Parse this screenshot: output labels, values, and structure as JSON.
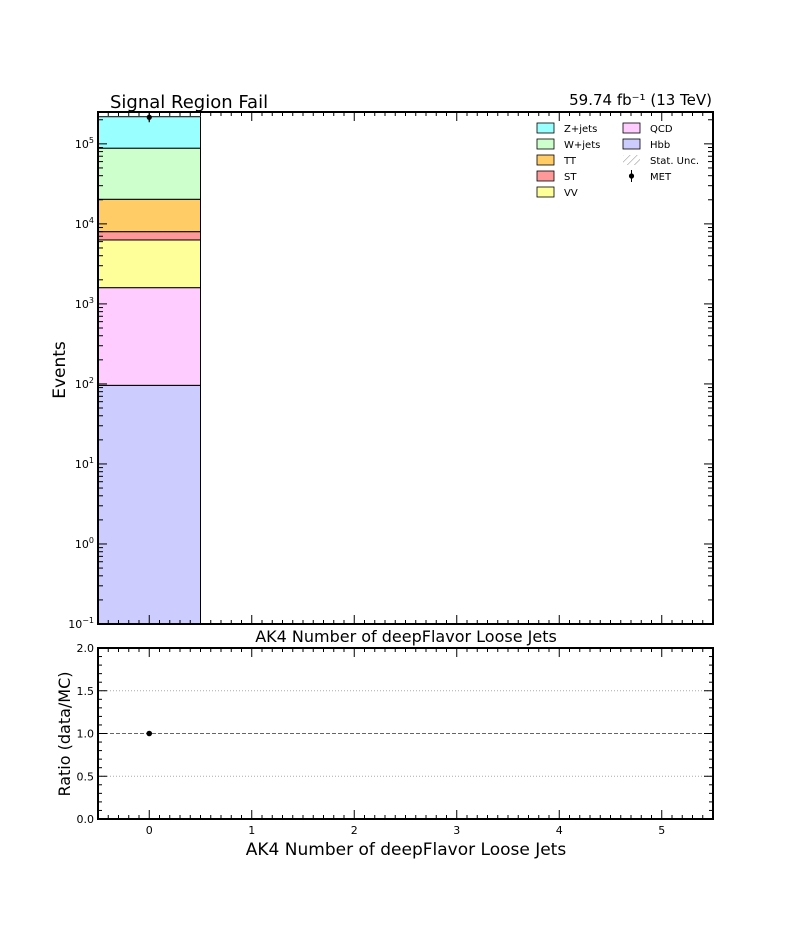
{
  "chart_data": [
    {
      "type": "bar",
      "stacked": true,
      "title": "Signal Region Fail",
      "lumi_label": "59.74 fb⁻¹ (13 TeV)",
      "xlabel": "AK4 Number of deepFlavor Loose Jets",
      "ylabel": "Events",
      "yscale": "log",
      "xlim": [
        -0.5,
        5.5
      ],
      "ylim": [
        0.1,
        250000
      ],
      "x_bin_edges": [
        -0.5,
        0.5
      ],
      "y_ticks": [
        {
          "value": 0.1,
          "base": "10",
          "exp": "−1"
        },
        {
          "value": 1,
          "base": "10",
          "exp": "0"
        },
        {
          "value": 10,
          "base": "10",
          "exp": "1"
        },
        {
          "value": 100,
          "base": "10",
          "exp": "2"
        },
        {
          "value": 1000,
          "base": "10",
          "exp": "3"
        },
        {
          "value": 10000,
          "base": "10",
          "exp": "4"
        },
        {
          "value": 100000,
          "base": "10",
          "exp": "5"
        }
      ],
      "stack_order_bottom_to_top": [
        "Hbb",
        "QCD",
        "VV",
        "ST",
        "TT",
        "W+jets",
        "Z+jets"
      ],
      "series": [
        {
          "name": "Hbb",
          "color": "#ccccff",
          "values": [
            96
          ]
        },
        {
          "name": "QCD",
          "color": "#ffccff",
          "values": [
            1500
          ]
        },
        {
          "name": "VV",
          "color": "#ffff99",
          "values": [
            4700
          ]
        },
        {
          "name": "ST",
          "color": "#ff9999",
          "values": [
            1700
          ]
        },
        {
          "name": "TT",
          "color": "#ffcc66",
          "values": [
            12300
          ]
        },
        {
          "name": "W+jets",
          "color": "#ccffcc",
          "values": [
            68000
          ]
        },
        {
          "name": "Z+jets",
          "color": "#99ffff",
          "values": [
            130000
          ]
        }
      ],
      "data_points": {
        "name": "MET",
        "x": [
          0
        ],
        "y": [
          215000
        ]
      },
      "legend": {
        "placement": "top-right",
        "entries": [
          {
            "label": "Z+jets",
            "kind": "box",
            "color": "#99ffff"
          },
          {
            "label": "QCD",
            "kind": "box",
            "color": "#ffccff"
          },
          {
            "label": "W+jets",
            "kind": "box",
            "color": "#ccffcc"
          },
          {
            "label": "Hbb",
            "kind": "box",
            "color": "#ccccff"
          },
          {
            "label": "TT",
            "kind": "box",
            "color": "#ffcc66"
          },
          {
            "label": "Stat. Unc.",
            "kind": "hatch",
            "color": "#888888"
          },
          {
            "label": "ST",
            "kind": "box",
            "color": "#ff9999"
          },
          {
            "label": "MET",
            "kind": "point",
            "color": "#000000"
          },
          {
            "label": "VV",
            "kind": "box",
            "color": "#ffff99"
          }
        ]
      }
    },
    {
      "type": "scatter",
      "xlabel": "AK4 Number of deepFlavor Loose Jets",
      "ylabel": "Ratio (data/MC)",
      "xlim": [
        -0.5,
        5.5
      ],
      "ylim": [
        0.0,
        2.0
      ],
      "x_ticks": [
        "0",
        "1",
        "2",
        "3",
        "4",
        "5"
      ],
      "y_ticks": [
        "0.0",
        "0.5",
        "1.0",
        "1.5",
        "2.0"
      ],
      "grid": "horizontal dotted",
      "reference_line": 1.0,
      "points": {
        "x": [
          0
        ],
        "y": [
          1.0
        ]
      }
    }
  ]
}
